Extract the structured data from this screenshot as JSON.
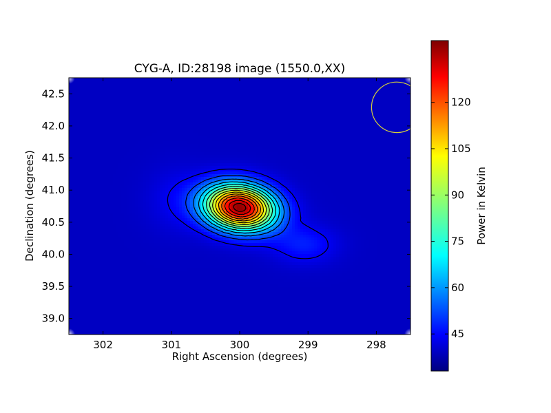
{
  "chart_data": {
    "type": "heatmap",
    "title": "CYG-A, ID:28198 image (1550.0,XX)",
    "xlabel": "Right Ascension (degrees)",
    "ylabel": "Declination (degrees)",
    "xlim": [
      302.5,
      297.5
    ],
    "ylim": [
      38.75,
      42.75
    ],
    "x_ticks": [
      302,
      301,
      300,
      299,
      298
    ],
    "x_tick_labels": [
      "302",
      "301",
      "300",
      "299",
      "298"
    ],
    "y_ticks": [
      39.0,
      39.5,
      40.0,
      40.5,
      41.0,
      41.5,
      42.0,
      42.5
    ],
    "y_tick_labels": [
      "39.0",
      "39.5",
      "40.0",
      "40.5",
      "41.0",
      "41.5",
      "42.0",
      "42.5"
    ],
    "colorbar": {
      "label": "Power in Kelvin",
      "colormap": "jet",
      "range": [
        33,
        140
      ],
      "ticks": [
        45,
        60,
        75,
        90,
        105,
        120
      ],
      "tick_labels": [
        "45",
        "60",
        "75",
        "90",
        "105",
        "120"
      ]
    },
    "source_peak": {
      "ra": 300.0,
      "dec": 40.73,
      "value": 138
    },
    "background_level": 40,
    "contour_levels": [
      45,
      52,
      59,
      66,
      73,
      80,
      87,
      94,
      101,
      108,
      115,
      122,
      129,
      135
    ],
    "beam_circle": {
      "ra": 297.7,
      "dec": 42.29,
      "radius_deg": 0.37,
      "color": "#d4cf3a"
    },
    "colors": {
      "frame": "#000000",
      "contour": "#000000",
      "background": "#ffffff"
    }
  }
}
